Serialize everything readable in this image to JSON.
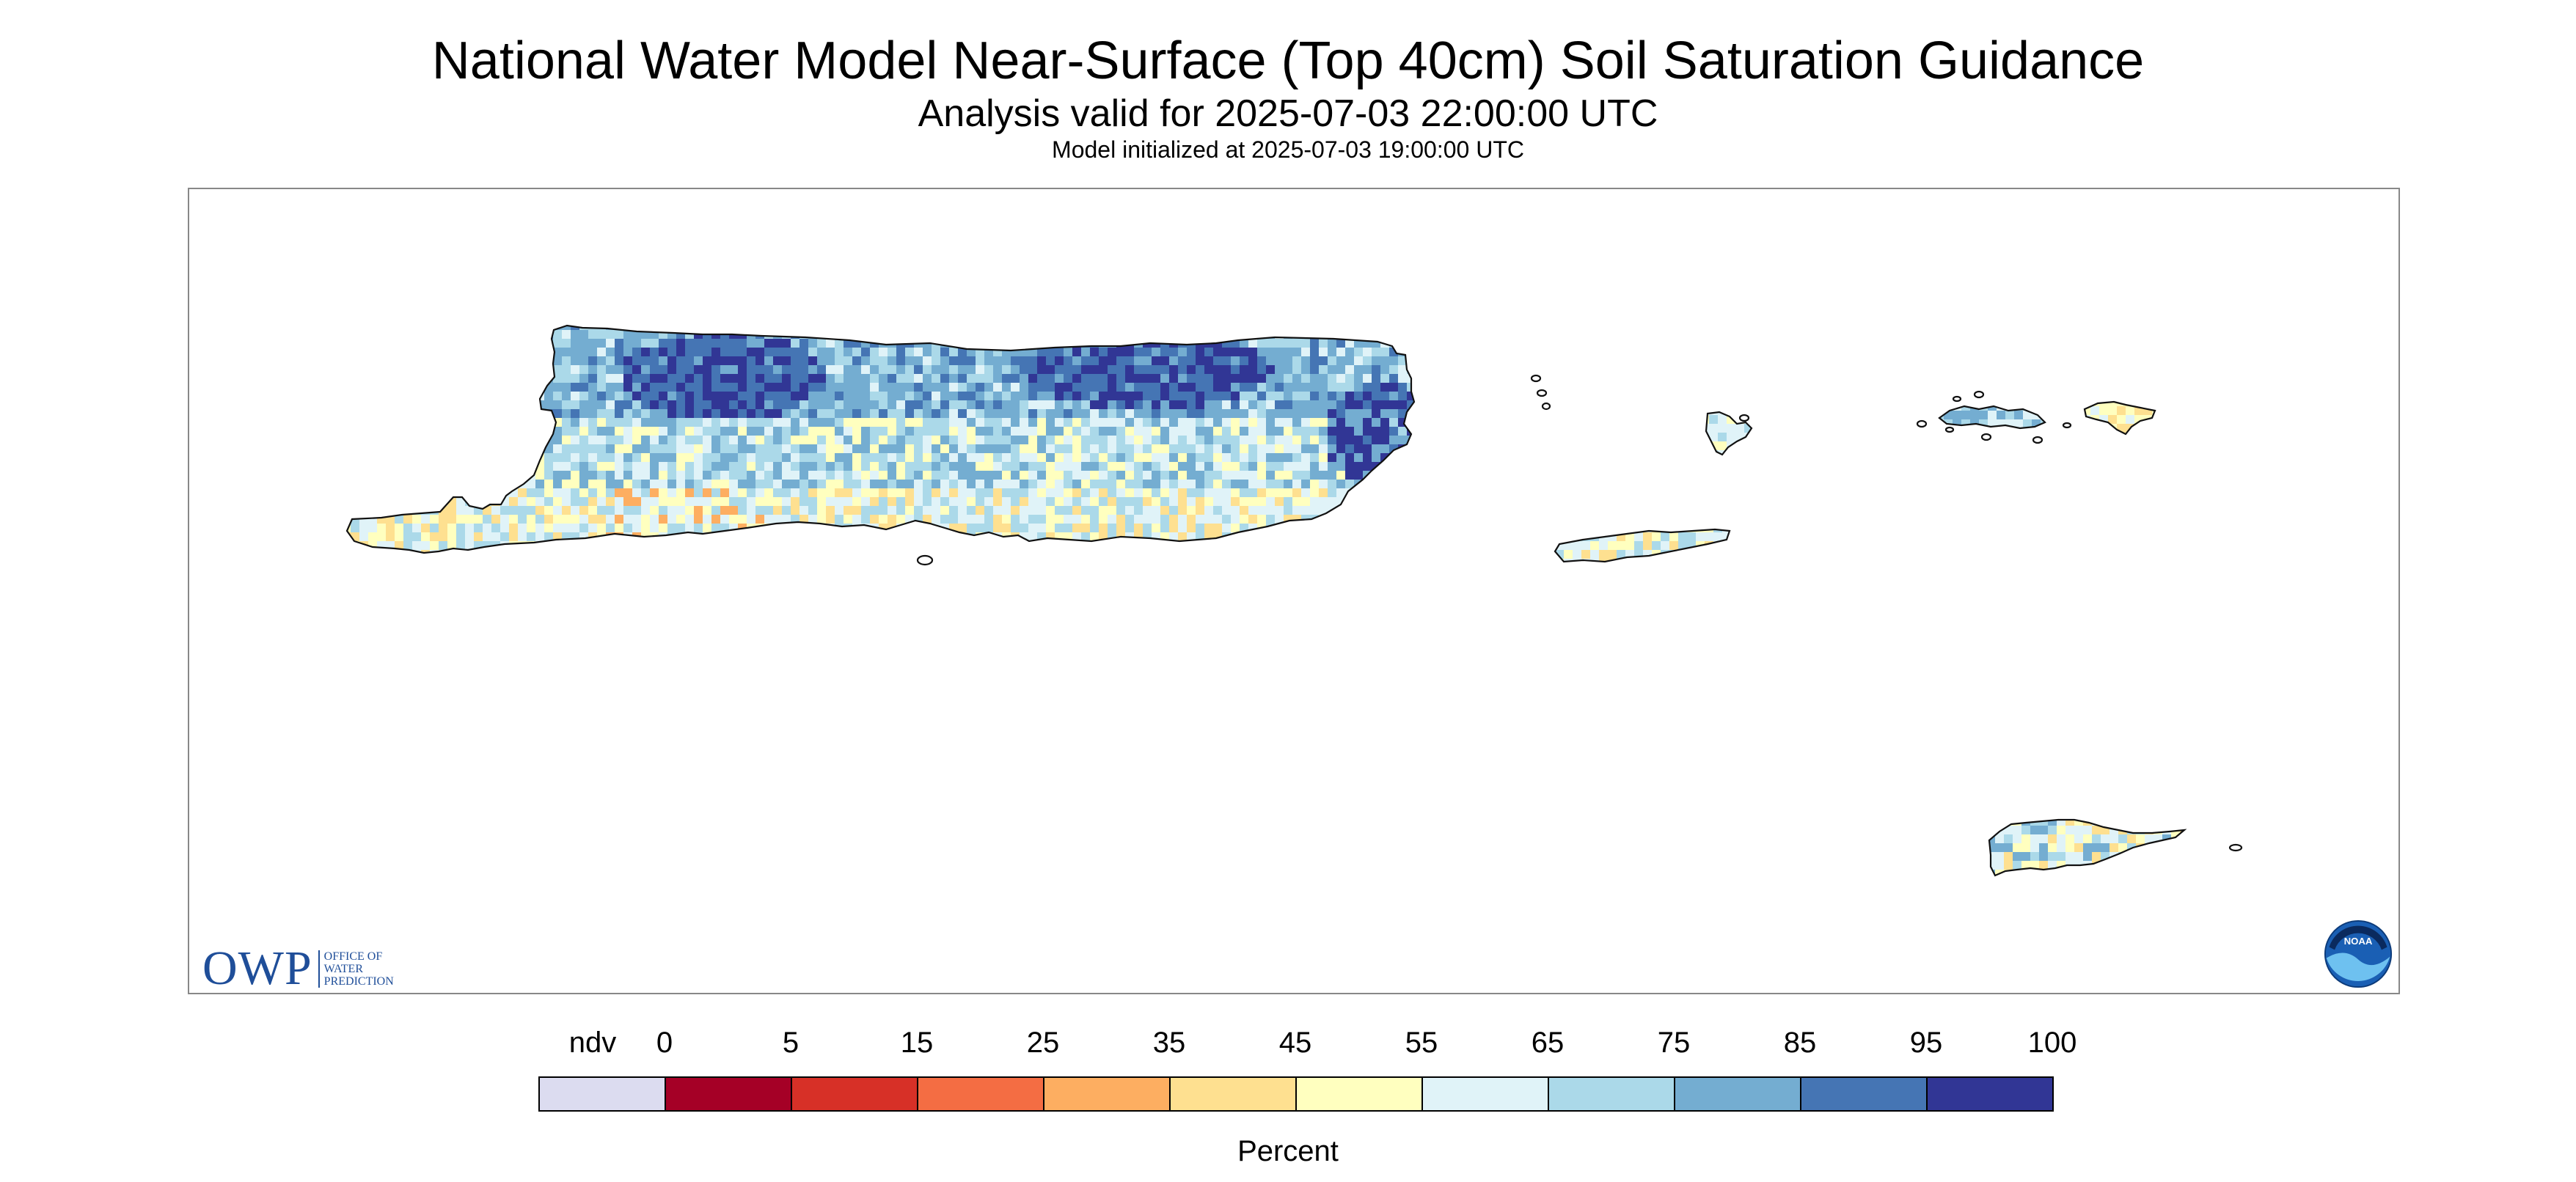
{
  "title": "National Water Model Near-Surface (Top 40cm) Soil Saturation Guidance",
  "subtitle": "Analysis valid for 2025-07-03 22:00:00 UTC",
  "init_line": "Model initialized at 2025-07-03 19:00:00 UTC",
  "logos": {
    "owp_mark": "OWP",
    "owp_text": "OFFICE OF\nWATER\nPREDICTION",
    "noaa_text": "NOAA"
  },
  "map": {
    "regions": [
      "Puerto Rico",
      "Vieques",
      "Culebra",
      "St. Thomas",
      "St. John",
      "St. Croix",
      "Desecheo Island",
      "Caja de Muertos"
    ]
  },
  "legend": {
    "title": "Percent",
    "boundary_labels": [
      "ndv",
      "0",
      "5",
      "15",
      "25",
      "35",
      "45",
      "55",
      "65",
      "75",
      "85",
      "95",
      "100"
    ],
    "bins": [
      {
        "label": "ndv",
        "color": "#dcdcf0"
      },
      {
        "range": "0-5",
        "color": "#a50026"
      },
      {
        "range": "5-15",
        "color": "#d73027"
      },
      {
        "range": "15-25",
        "color": "#f46d43"
      },
      {
        "range": "25-35",
        "color": "#fdae61"
      },
      {
        "range": "35-45",
        "color": "#fee090"
      },
      {
        "range": "45-55",
        "color": "#ffffbf"
      },
      {
        "range": "55-65",
        "color": "#e0f3f8"
      },
      {
        "range": "65-75",
        "color": "#abd9e9"
      },
      {
        "range": "75-85",
        "color": "#74add1"
      },
      {
        "range": "85-95",
        "color": "#4575b4"
      },
      {
        "range": "95-100",
        "color": "#313695"
      }
    ]
  }
}
